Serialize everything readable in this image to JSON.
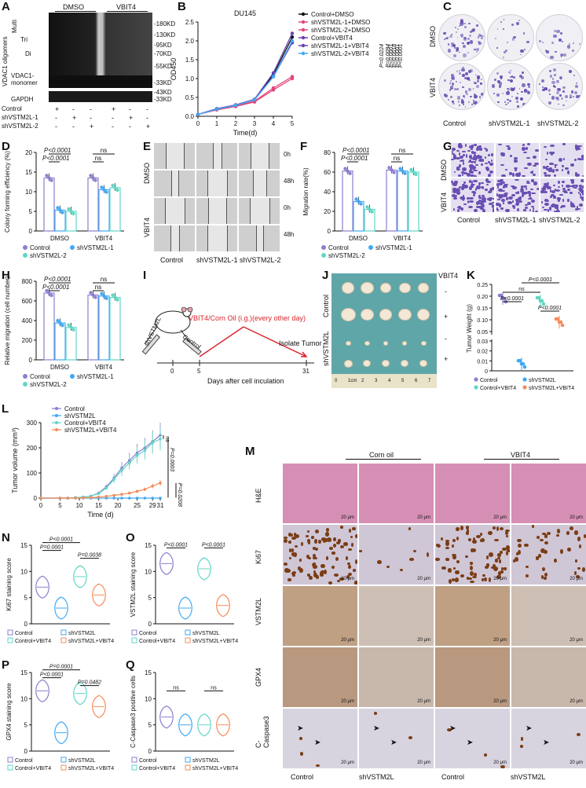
{
  "panels": {
    "A": {
      "label": "A",
      "groups": [
        "DMSO",
        "VBIT4"
      ],
      "left_labels": [
        "Multi",
        "Tri",
        "Di",
        "VDAC1 oligomers",
        "VDAC1-",
        "monomer",
        "GAPDH"
      ],
      "kd_marks": [
        "-180KD",
        "-130KD",
        "-95KD",
        "-70KD",
        "-55KD",
        "-33KD",
        "-43KD",
        "-33KD"
      ],
      "rows": [
        "Control",
        "shVSTM2L-1",
        "shVSTM2L-2"
      ],
      "signs": [
        [
          "+",
          "-",
          "-",
          "+",
          "-",
          "-"
        ],
        [
          "-",
          "+",
          "-",
          "-",
          "+",
          "-"
        ],
        [
          "-",
          "-",
          "+",
          "-",
          "-",
          "+"
        ]
      ]
    },
    "B": {
      "label": "B",
      "title": "DU145",
      "ylabel": "OD450",
      "xlabel": "Time(d)",
      "legend": [
        "Control+DMSO",
        "shVSTM2L-1+DMSO",
        "shVSTM2L-2+DMSO",
        "Control+VBIT4",
        "shVSTM2L-1+VBIT4",
        "shVSTM2L-2+VBIT4"
      ],
      "pvalues": [
        "P<0.0001",
        "P<0.0001",
        "P=0.0224",
        "P=0.0094",
        "P=0.0018",
        "P<0.0001"
      ]
    },
    "C": {
      "label": "C",
      "rows": [
        "DMSO",
        "VBIT4"
      ],
      "cols": [
        "Control",
        "shVSTM2L-1",
        "shVSTM2L-2"
      ]
    },
    "D": {
      "label": "D",
      "ylabel": "Colony forming efficiency (%)",
      "groups": [
        "DMSO",
        "VBIT4"
      ],
      "pvalues": [
        "P<0.0001",
        "P<0.0001",
        "ns",
        "ns"
      ],
      "legend": [
        "Control",
        "shVSTM2L-1",
        "shVSTM2L-2"
      ]
    },
    "E": {
      "label": "E",
      "rows": [
        "DMSO",
        "VBIT4"
      ],
      "times": [
        "0h",
        "48h",
        "0h",
        "48h"
      ],
      "cols": [
        "Control",
        "shVSTM2L-1",
        "shVSTM2L-2"
      ]
    },
    "F": {
      "label": "F",
      "ylabel": "Migration rate(%)",
      "groups": [
        "DMSO",
        "VBIT4"
      ],
      "pvalues": [
        "P<0.0001",
        "P<0.0001",
        "ns",
        "ns"
      ],
      "legend": [
        "Control",
        "shVSTM2L-1",
        "shVSTM2L-2"
      ]
    },
    "G": {
      "label": "G",
      "rows": [
        "DMSO",
        "VBIT4"
      ],
      "cols": [
        "Control",
        "shVSTM2L-1",
        "shVSTM2L-2"
      ]
    },
    "H": {
      "label": "H",
      "ylabel": "Relative migration (cell number)",
      "groups": [
        "DMSO",
        "VBIT4"
      ],
      "pvalues": [
        "P<0.0001",
        "P<0.0001",
        "ns",
        "ns"
      ],
      "legend": [
        "Control",
        "shVSTM2L-1",
        "shVSTM2L-2"
      ]
    },
    "I": {
      "label": "I",
      "treatment": "VBIT4/Corn Oil (i.g.)(every other day)",
      "end_label": "Isolate Tumor",
      "axis_label": "Days after cell inculation",
      "ticks": [
        "0",
        "5",
        "31"
      ],
      "mice": [
        "shVSTM2L",
        "Control"
      ]
    },
    "J": {
      "label": "J",
      "header": "VBIT4",
      "signs": [
        "-",
        "+",
        "-",
        "+"
      ],
      "rows": [
        "Control",
        "shVSTM2L"
      ],
      "ruler": [
        "0",
        "1cm",
        "2",
        "3",
        "4",
        "5",
        "6",
        "7"
      ]
    },
    "K": {
      "label": "K",
      "ylabel": "Tumor Weight (g)",
      "pvalues": [
        "P<0.0001",
        "ns",
        "P<0.0001",
        "P<0.0001"
      ],
      "legend": [
        "Control",
        "shVSTM2L",
        "Control+VBIT4",
        "shVSTM2L+VBIT4"
      ]
    },
    "L": {
      "label": "L",
      "ylabel": "Tumor volume (mm³)",
      "xlabel": "Time (d)",
      "legend": [
        "Control",
        "shVSTM2L",
        "Control+VBIT4",
        "shVSTM2L+VBIT4"
      ],
      "pvalues": [
        "ns",
        "P=0.0003",
        "P=0.0208"
      ]
    },
    "M": {
      "label": "M",
      "header_groups": [
        "Corn oil",
        "VBIT4"
      ],
      "rows": [
        "H&E",
        "Ki67",
        "VSTM2L",
        "GPX4",
        "C-Caspase3"
      ],
      "cols": [
        "Control",
        "shVSTM2L",
        "Control",
        "shVSTM2L"
      ],
      "scale": "20 μm"
    },
    "N": {
      "label": "N",
      "ylabel": "Ki67 staining score",
      "pvalues": [
        "P=0.0001",
        "P<0.0001",
        "P=0.0038"
      ],
      "legend": [
        "Control",
        "shVSTM2L",
        "Control+VBIT4",
        "shVSTM2L+VBIT4"
      ]
    },
    "O": {
      "label": "O",
      "ylabel": "VSTM2L staining score",
      "pvalues": [
        "P<0.0001",
        "P<0.0001"
      ],
      "legend": [
        "Control",
        "shVSTM2L",
        "Control+VBIT4",
        "shVSTM2L+VBIT4"
      ]
    },
    "P": {
      "label": "P",
      "ylabel": "GPX4 staining score",
      "pvalues": [
        "P=0.0001",
        "P<0.0001",
        "P=0.0482"
      ],
      "legend": [
        "Control",
        "shVSTM2L",
        "Control+VBIT4",
        "shVSTM2L+VBIT4"
      ]
    },
    "Q": {
      "label": "Q",
      "ylabel": "C-Caspase3 positive cells",
      "pvalues": [
        "ns",
        "ns"
      ],
      "legend": [
        "Control",
        "shVSTM2L",
        "Control+VBIT4",
        "shVSTM2L+VBIT4"
      ]
    }
  },
  "colors": {
    "control": "#8c7fd0",
    "sh1": "#3fa9f5",
    "sh2": "#61d6c4",
    "vbit": "#f58c5a",
    "line_red": "#e2457a",
    "line_purple": "#6a3fb0",
    "blot": "#1c1c1c",
    "crystal": "#6a4fb3",
    "he": "#d68fb4",
    "ihc": "#c9a98a"
  },
  "chart_data": [
    {
      "type": "line",
      "title": "DU145",
      "xlabel": "Time(d)",
      "ylabel": "OD450",
      "x": [
        0,
        1,
        2,
        3,
        4,
        5
      ],
      "xlim": [
        0,
        5
      ],
      "ylim": [
        0,
        2.5
      ],
      "series": [
        {
          "name": "Control+DMSO",
          "values": [
            0.05,
            0.2,
            0.3,
            0.45,
            1.1,
            2.1
          ]
        },
        {
          "name": "shVSTM2L-1+DMSO",
          "values": [
            0.05,
            0.18,
            0.27,
            0.4,
            0.75,
            1.05
          ]
        },
        {
          "name": "shVSTM2L-2+DMSO",
          "values": [
            0.05,
            0.17,
            0.26,
            0.38,
            0.7,
            1.0
          ]
        },
        {
          "name": "Control+VBIT4",
          "values": [
            0.05,
            0.2,
            0.3,
            0.45,
            1.15,
            2.2
          ]
        },
        {
          "name": "shVSTM2L-1+VBIT4",
          "values": [
            0.05,
            0.19,
            0.29,
            0.44,
            1.05,
            1.95
          ]
        },
        {
          "name": "shVSTM2L-2+VBIT4",
          "values": [
            0.05,
            0.19,
            0.29,
            0.44,
            1.05,
            2.0
          ]
        }
      ]
    },
    {
      "type": "bar",
      "ylabel": "Colony forming efficiency (%)",
      "categories": [
        "DMSO",
        "VBIT4"
      ],
      "ylim": [
        0,
        20
      ],
      "series": [
        {
          "name": "Control",
          "values": [
            13.5,
            13.5
          ]
        },
        {
          "name": "shVSTM2L-1",
          "values": [
            5.3,
            10.5
          ]
        },
        {
          "name": "shVSTM2L-2",
          "values": [
            5.0,
            11.0
          ]
        }
      ]
    },
    {
      "type": "bar",
      "ylabel": "Migration rate(%)",
      "categories": [
        "DMSO",
        "VBIT4"
      ],
      "ylim": [
        0,
        80
      ],
      "series": [
        {
          "name": "Control",
          "values": [
            61,
            62
          ]
        },
        {
          "name": "shVSTM2L-1",
          "values": [
            30,
            61
          ]
        },
        {
          "name": "shVSTM2L-2",
          "values": [
            22,
            60
          ]
        }
      ]
    },
    {
      "type": "bar",
      "ylabel": "Relative migration (cell number)",
      "categories": [
        "DMSO",
        "VBIT4"
      ],
      "ylim": [
        0,
        800
      ],
      "series": [
        {
          "name": "Control",
          "values": [
            680,
            660
          ]
        },
        {
          "name": "shVSTM2L-1",
          "values": [
            375,
            650
          ]
        },
        {
          "name": "shVSTM2L-2",
          "values": [
            330,
            635
          ]
        }
      ]
    },
    {
      "type": "scatter",
      "ylabel": "Tumor Weight (g)",
      "categories": [
        "Control",
        "shVSTM2L",
        "Control+VBIT4",
        "shVSTM2L+VBIT4"
      ],
      "values": [
        0.19,
        0.007,
        0.18,
        0.09
      ]
    },
    {
      "type": "line",
      "xlabel": "Time (d)",
      "ylabel": "Tumor volume (mm³)",
      "x": [
        0,
        5,
        7,
        9,
        11,
        13,
        15,
        17,
        19,
        21,
        23,
        25,
        27,
        29,
        31
      ],
      "xlim": [
        0,
        31
      ],
      "ylim": [
        0,
        300
      ],
      "series": [
        {
          "name": "Control",
          "values": [
            0,
            0,
            0,
            2,
            4,
            8,
            20,
            45,
            80,
            120,
            150,
            180,
            200,
            225,
            250
          ]
        },
        {
          "name": "shVSTM2L",
          "values": [
            0,
            0,
            0,
            0,
            0,
            0,
            0,
            0,
            0,
            0,
            0,
            0,
            0,
            0,
            0
          ]
        },
        {
          "name": "Control+VBIT4",
          "values": [
            0,
            0,
            0,
            2,
            4,
            8,
            18,
            40,
            75,
            110,
            140,
            170,
            190,
            220,
            235
          ]
        },
        {
          "name": "shVSTM2L+VBIT4",
          "values": [
            0,
            0,
            0,
            0,
            1,
            2,
            4,
            7,
            11,
            15,
            20,
            27,
            35,
            48,
            60
          ]
        }
      ]
    },
    {
      "type": "violin",
      "ylabel": "Ki67 staining score",
      "ylim": [
        0,
        15
      ],
      "categories": [
        "Control",
        "shVSTM2L",
        "Control+VBIT4",
        "shVSTM2L+VBIT4"
      ],
      "values": [
        7,
        3,
        9,
        5.5
      ]
    },
    {
      "type": "violin",
      "ylabel": "VSTM2L staining score",
      "ylim": [
        0,
        15
      ],
      "categories": [
        "Control",
        "shVSTM2L",
        "Control+VBIT4",
        "shVSTM2L+VBIT4"
      ],
      "values": [
        11.5,
        3,
        10.5,
        3.5
      ]
    },
    {
      "type": "violin",
      "ylabel": "GPX4 staining score",
      "ylim": [
        0,
        15
      ],
      "categories": [
        "Control",
        "shVSTM2L",
        "Control+VBIT4",
        "shVSTM2L+VBIT4"
      ],
      "values": [
        11.5,
        3.5,
        11,
        8.5
      ]
    },
    {
      "type": "violin",
      "ylabel": "C-Caspase3 positive cells",
      "ylim": [
        0,
        15
      ],
      "categories": [
        "Control",
        "shVSTM2L",
        "Control+VBIT4",
        "shVSTM2L+VBIT4"
      ],
      "values": [
        6.5,
        5,
        5,
        5
      ]
    }
  ]
}
